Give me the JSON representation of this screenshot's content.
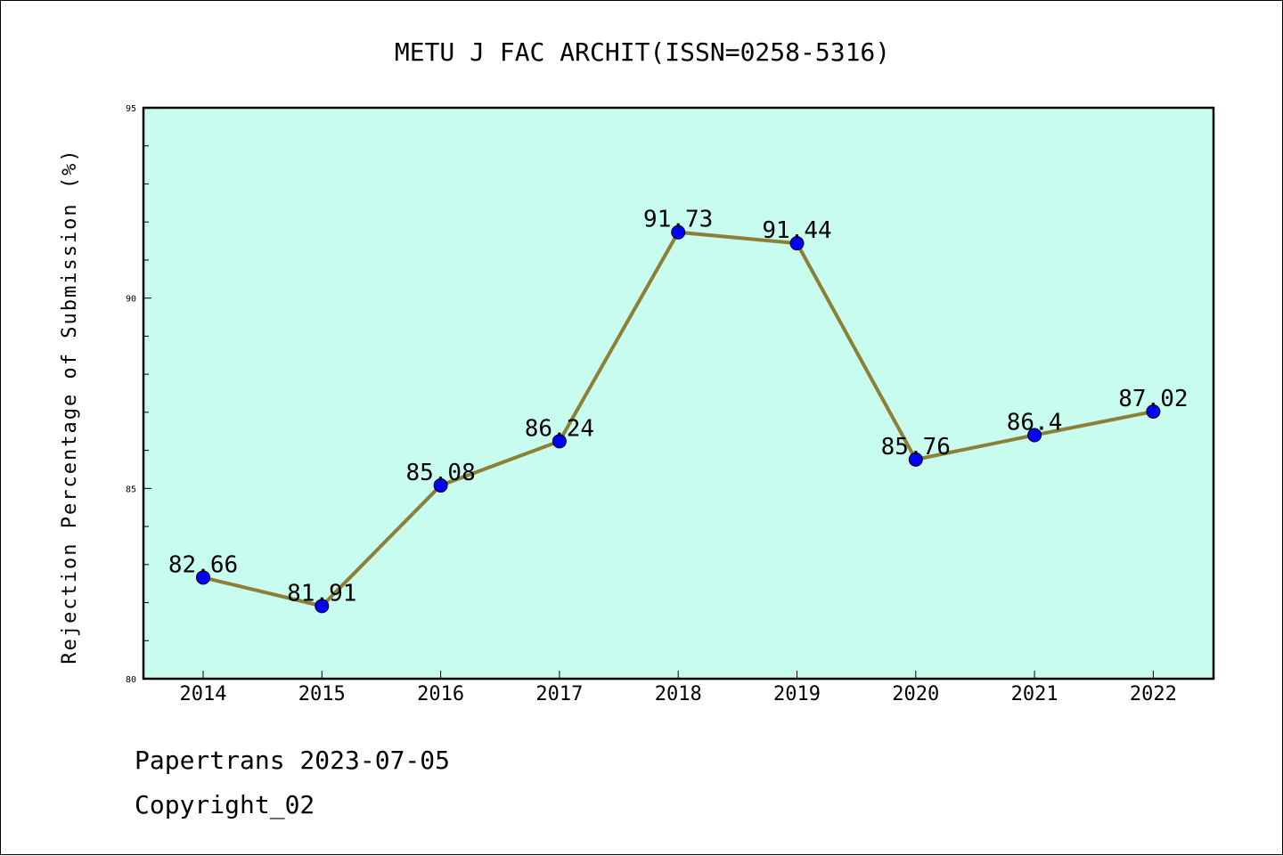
{
  "chart_data": {
    "type": "line",
    "title": "METU J FAC ARCHIT(ISSN=0258-5316)",
    "xlabel": "",
    "ylabel": "Rejection Percentage of Submission (%)",
    "categories": [
      "2014",
      "2015",
      "2016",
      "2017",
      "2018",
      "2019",
      "2020",
      "2021",
      "2022"
    ],
    "series": [
      {
        "values": [
          82.66,
          81.91,
          85.08,
          86.24,
          91.73,
          91.44,
          85.76,
          86.4,
          87.02
        ],
        "labels": [
          "82.66",
          "81.91",
          "85.08",
          "86.24",
          "91.73",
          "91.44",
          "85.76",
          "86.4",
          "87.02"
        ]
      }
    ],
    "ylim": [
      80,
      95
    ],
    "yticks": [
      "80",
      "85",
      "90",
      "95"
    ],
    "grid": false,
    "legend": "none",
    "colors": {
      "plot_background": "#c8fcee",
      "line": "#8b8035",
      "marker": "#0000ff"
    }
  },
  "footer": {
    "line1": "Papertrans 2023-07-05",
    "line2": "Copyright_02"
  }
}
